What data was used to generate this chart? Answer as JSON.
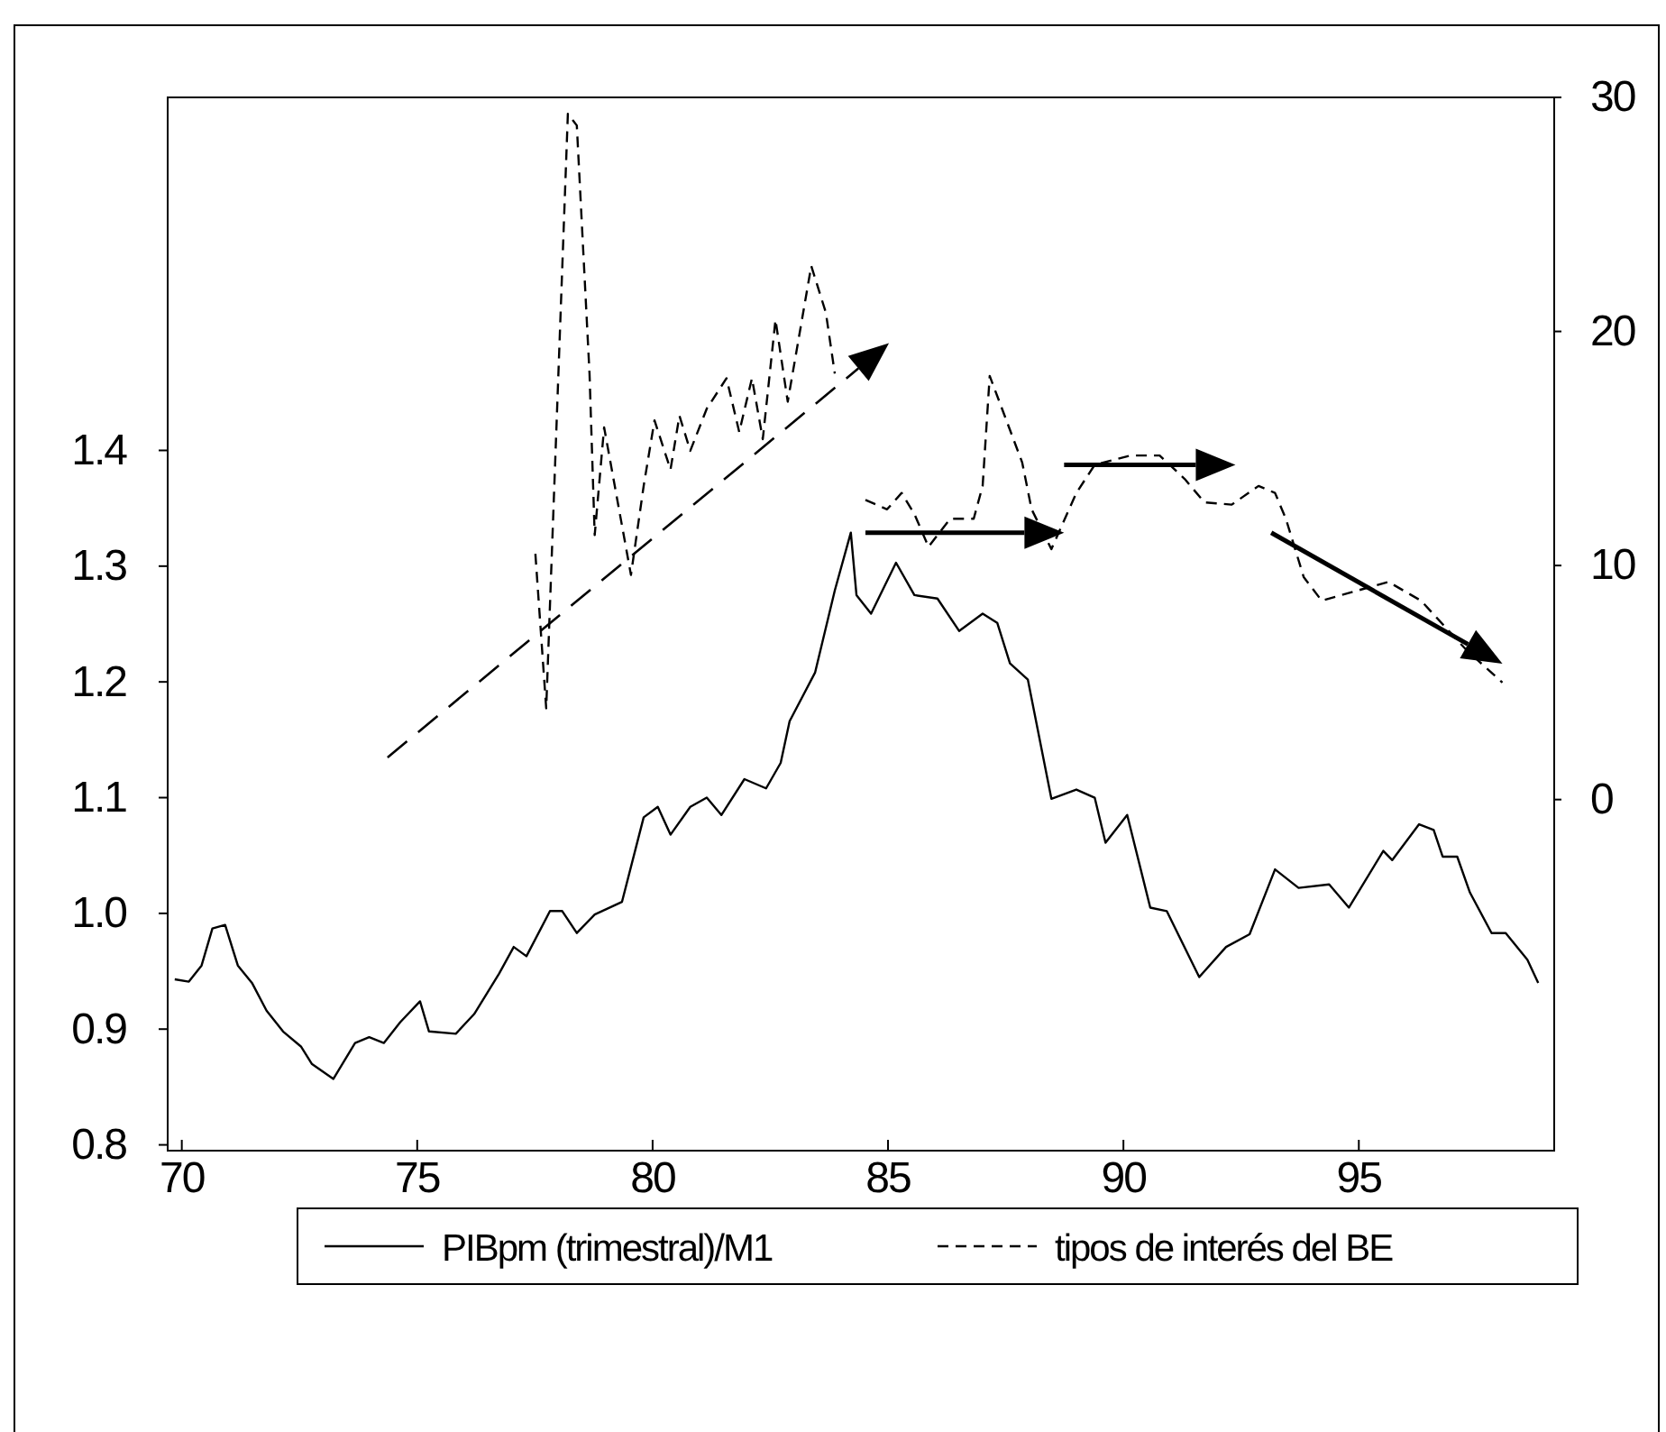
{
  "chart_data": {
    "type": "line",
    "xlim": [
      69.7,
      99.15
    ],
    "xticks": [
      70,
      75,
      80,
      85,
      90,
      95
    ],
    "ylim": [
      0.795,
      1.705
    ],
    "yticks": [
      0.8,
      0.9,
      {
        "value": 1.0,
        "label": "1.0"
      },
      1.1,
      1.2,
      1.3,
      1.4
    ],
    "y2lim": [
      -15,
      30
    ],
    "y2ticks": [
      0,
      10,
      20,
      30
    ],
    "legend": "bottom",
    "grid": false,
    "marker": "none",
    "series": [
      {
        "name": "PIBpm (trimestral)/M1",
        "color": "#000000",
        "line_style": "solid",
        "x": [
          69.85,
          70.15,
          70.42,
          70.65,
          70.92,
          71.19,
          71.49,
          71.8,
          72.15,
          72.53,
          72.76,
          73.22,
          73.68,
          73.98,
          74.29,
          74.64,
          75.06,
          75.25,
          75.82,
          76.21,
          76.74,
          77.05,
          77.32,
          77.82,
          78.08,
          78.39,
          78.77,
          79.35,
          79.81,
          80.11,
          80.38,
          80.8,
          81.15,
          81.46,
          81.95,
          82.41,
          82.72,
          82.91,
          83.45,
          83.87,
          84.21,
          84.33,
          84.64,
          85.17,
          85.56,
          86.05,
          86.51,
          87.01,
          87.32,
          87.59,
          87.97,
          88.47,
          89.0,
          89.39,
          89.62,
          90.08,
          90.57,
          90.92,
          91.61,
          92.18,
          92.68,
          93.22,
          93.72,
          94.37,
          94.79,
          95.52,
          95.71,
          96.28,
          96.59,
          96.78,
          97.09,
          97.36,
          97.82,
          98.12,
          98.58,
          98.81
        ],
        "values": [
          0.943,
          0.941,
          0.955,
          0.987,
          0.99,
          0.955,
          0.94,
          0.916,
          0.898,
          0.885,
          0.87,
          0.857,
          0.888,
          0.893,
          0.888,
          0.906,
          0.924,
          0.898,
          0.896,
          0.913,
          0.948,
          0.971,
          0.963,
          1.002,
          1.002,
          0.983,
          0.999,
          1.01,
          1.083,
          1.092,
          1.068,
          1.092,
          1.1,
          1.085,
          1.116,
          1.108,
          1.13,
          1.166,
          1.208,
          1.279,
          1.329,
          1.275,
          1.259,
          1.303,
          1.275,
          1.272,
          1.244,
          1.259,
          1.251,
          1.216,
          1.202,
          1.099,
          1.107,
          1.1,
          1.061,
          1.085,
          1.005,
          1.002,
          0.945,
          0.971,
          0.982,
          1.038,
          1.022,
          1.025,
          1.005,
          1.054,
          1.046,
          1.077,
          1.072,
          1.049,
          1.049,
          1.018,
          0.983,
          0.983,
          0.96,
          0.94
        ]
      },
      {
        "name": "tipos de interés del BE",
        "color": "#000000",
        "line_style": "dashed",
        "axis": "y2",
        "x": [
          77.51,
          77.74,
          78.2,
          78.39,
          78.66,
          78.77,
          78.97,
          79.54,
          79.81,
          80.04,
          80.38,
          80.57,
          80.8,
          81.15,
          81.57,
          81.84,
          82.11,
          82.34,
          82.61,
          82.87,
          83.37,
          83.68,
          83.87,
          84.2,
          84.52,
          84.98,
          85.29,
          85.56,
          85.86,
          86.32,
          86.82,
          87.01,
          87.16,
          87.85,
          88.05,
          88.47,
          89.0,
          89.39,
          90.15,
          90.77,
          91.3,
          91.72,
          92.3,
          92.87,
          93.22,
          93.45,
          93.83,
          94.21,
          95.63,
          96.32,
          97.28,
          98.05
        ],
        "values": [
          10.5,
          3.9,
          29.3,
          28.8,
          18.2,
          11.3,
          15.9,
          9.6,
          13.4,
          16.2,
          14.1,
          16.4,
          14.9,
          16.7,
          18.0,
          15.7,
          18.0,
          15.4,
          20.5,
          17.0,
          22.8,
          20.8,
          18.2,
          null,
          12.8,
          12.4,
          13.1,
          12.2,
          10.8,
          12.0,
          12.0,
          13.4,
          18.1,
          14.4,
          12.4,
          10.7,
          13.1,
          14.3,
          14.7,
          14.7,
          13.7,
          12.7,
          12.6,
          13.4,
          13.1,
          12.0,
          9.5,
          8.5,
          9.3,
          8.5,
          6.4,
          5.0
        ]
      }
    ]
  }
}
